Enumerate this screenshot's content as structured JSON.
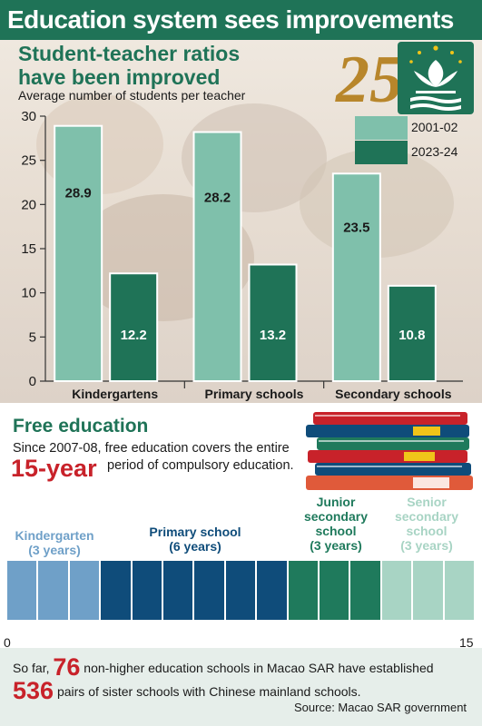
{
  "header": {
    "title": "Education system sees improvements"
  },
  "chart_section": {
    "subtitle_line1": "Student-teacher ratios",
    "subtitle_line2": "have been improved"
  },
  "chart_data": {
    "type": "bar",
    "title": "Student-teacher ratios have been improved",
    "ylabel": "Average number of students per teacher",
    "xlabel": "",
    "categories": [
      "Kindergartens",
      "Primary schools",
      "Secondary schools"
    ],
    "series": [
      {
        "name": "2001-02",
        "values": [
          28.9,
          28.2,
          23.5
        ],
        "color": "#7fc0ab"
      },
      {
        "name": "2023-24",
        "values": [
          12.2,
          13.2,
          10.8
        ],
        "color": "#1f7357"
      }
    ],
    "ylim": [
      0,
      30
    ],
    "yticks": [
      "0",
      "5",
      "10",
      "15",
      "20",
      "25",
      "30"
    ],
    "value_labels": [
      [
        "28.9",
        "28.2",
        "23.5"
      ],
      [
        "12.2",
        "13.2",
        "10.8"
      ]
    ],
    "legend_position": "top-right",
    "grid": false
  },
  "free_education": {
    "title": "Free education",
    "line1": "Since 2007-08, free education covers the entire",
    "highlight": "15-year",
    "line2": "period of compulsory education.",
    "stages": [
      {
        "name": "Kindergarten",
        "years": "(3 years)",
        "count": 3,
        "color": "#6fa0c8"
      },
      {
        "name": "Primary school",
        "years": "(6 years)",
        "count": 6,
        "color": "#0f4c7a"
      },
      {
        "name": "Junior secondary school",
        "name_lines": [
          "Junior",
          "secondary",
          "school"
        ],
        "years": "(3 years)",
        "count": 3,
        "color": "#1f7a5c"
      },
      {
        "name": "Senior secondary school",
        "name_lines": [
          "Senior",
          "secondary",
          "school"
        ],
        "years": "(3 years)",
        "count": 3,
        "color": "#a8d4c4"
      }
    ],
    "axis_min": "0",
    "axis_max": "15"
  },
  "bottom": {
    "prefix": "So far,",
    "num_schools": "76",
    "text1": "non-higher education schools in Macao SAR have established",
    "num_pairs": "536",
    "text2": "pairs of sister schools with Chinese mainland schools.",
    "source": "Source: Macao SAR government"
  },
  "colors": {
    "brand_green": "#1f7357",
    "light_green": "#7fc0ab",
    "accent_red": "#c8222a",
    "gold": "#b8862b"
  },
  "icons": {
    "emblem": "macao-25th-anniversary-emblem-icon",
    "books": "book-stack-icon"
  }
}
